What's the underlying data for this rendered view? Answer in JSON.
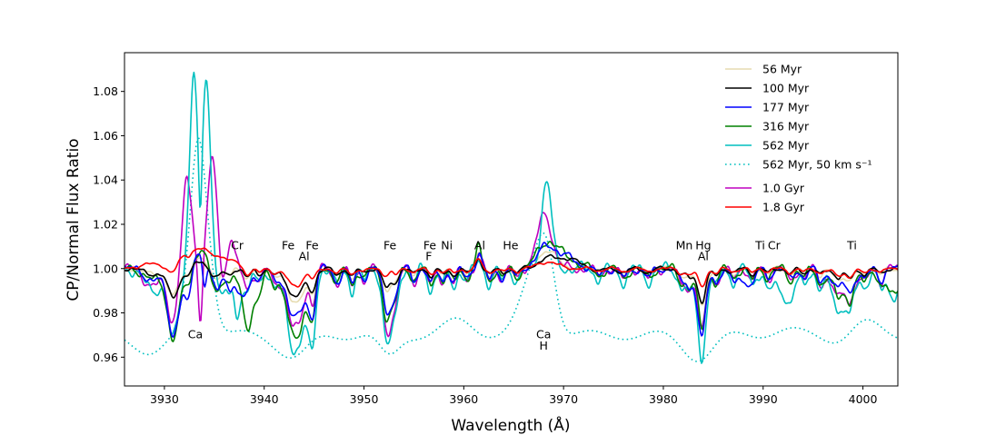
{
  "chart_data": {
    "type": "line",
    "xlabel": "Wavelength (Å)",
    "ylabel": "CP/Normal Flux Ratio",
    "xlim": [
      3926,
      4003.5
    ],
    "ylim": [
      0.947,
      1.0975
    ],
    "xticks": [
      3930,
      3940,
      3950,
      3960,
      3970,
      3980,
      3990,
      4000
    ],
    "yticks": [
      0.96,
      0.98,
      1.0,
      1.02,
      1.04,
      1.06,
      1.08
    ],
    "xtick_labels": [
      "3930",
      "3940",
      "3950",
      "3960",
      "3970",
      "3980",
      "3990",
      "4000"
    ],
    "ytick_labels": [
      "0.96",
      "0.98",
      "1.00",
      "1.02",
      "1.04",
      "1.06",
      "1.08"
    ],
    "legend_position": "top-right",
    "series": [
      {
        "name": "56 Myr",
        "color": "#e6dcb0",
        "dash": "solid",
        "amp": 0.55,
        "noise": 1,
        "features": [
          [
            3928.8,
            -0.0025,
            0.8
          ],
          [
            3931,
            -0.006,
            0.7
          ],
          [
            3933.6,
            0.004,
            0.6
          ],
          [
            3935.2,
            -0.004,
            0.5
          ],
          [
            3943,
            -0.009,
            1.0
          ],
          [
            3944.6,
            -0.005,
            0.4
          ],
          [
            3952.5,
            -0.006,
            0.5
          ],
          [
            3961.5,
            0.007,
            0.25
          ],
          [
            3968.4,
            0.008,
            1.0
          ],
          [
            3983.8,
            -0.01,
            0.5
          ],
          [
            3998,
            -0.003,
            1.2
          ]
        ]
      },
      {
        "name": "100 Myr",
        "color": "#000000",
        "dash": "solid",
        "amp": 0.5,
        "noise": 2,
        "features": [
          [
            3928.8,
            -0.0025,
            0.8
          ],
          [
            3931,
            -0.007,
            0.7
          ],
          [
            3933.6,
            0.003,
            0.6
          ],
          [
            3935.2,
            -0.004,
            0.5
          ],
          [
            3943,
            -0.007,
            1.0
          ],
          [
            3944.6,
            -0.004,
            0.4
          ],
          [
            3952.5,
            -0.005,
            0.5
          ],
          [
            3961.5,
            0.005,
            0.25
          ],
          [
            3968.4,
            0.004,
            1.0
          ],
          [
            3970.5,
            0.004,
            1.2
          ],
          [
            3983.8,
            -0.009,
            0.5
          ],
          [
            3998,
            -0.002,
            1.2
          ]
        ]
      },
      {
        "name": "177 Myr",
        "color": "#0000ff",
        "dash": "solid",
        "amp": 1.0,
        "noise": 3,
        "features": [
          [
            3928.8,
            -0.005,
            0.8
          ],
          [
            3931,
            -0.018,
            0.7
          ],
          [
            3932.3,
            -0.01,
            0.3
          ],
          [
            3933.6,
            0.008,
            0.6
          ],
          [
            3934,
            -0.012,
            0.2
          ],
          [
            3935.2,
            -0.01,
            0.5
          ],
          [
            3937.5,
            -0.012,
            0.5
          ],
          [
            3943,
            -0.012,
            1.0
          ],
          [
            3944.6,
            -0.01,
            0.4
          ],
          [
            3952.5,
            -0.012,
            0.5
          ],
          [
            3961.5,
            0.007,
            0.25
          ],
          [
            3968.4,
            0.01,
            1.0
          ],
          [
            3970.5,
            0.004,
            1.0
          ],
          [
            3983.8,
            -0.02,
            0.5
          ],
          [
            3988,
            -0.005,
            0.8
          ],
          [
            3998,
            -0.006,
            1.2
          ]
        ]
      },
      {
        "name": "316 Myr",
        "color": "#008000",
        "dash": "solid",
        "amp": 1.05,
        "noise": 4,
        "features": [
          [
            3928.8,
            -0.005,
            0.8
          ],
          [
            3931,
            -0.02,
            0.7
          ],
          [
            3933.6,
            0.008,
            0.6
          ],
          [
            3935.2,
            -0.01,
            0.5
          ],
          [
            3938.5,
            -0.018,
            0.8
          ],
          [
            3943,
            -0.02,
            1.0
          ],
          [
            3944.6,
            -0.01,
            0.4
          ],
          [
            3952.5,
            -0.015,
            0.5
          ],
          [
            3961.5,
            0.01,
            0.25
          ],
          [
            3968.4,
            0.012,
            1.0
          ],
          [
            3970.5,
            0.004,
            1.0
          ],
          [
            3983.8,
            -0.015,
            0.5
          ],
          [
            3998,
            -0.01,
            1.2
          ],
          [
            4003,
            -0.012,
            0.7
          ]
        ]
      },
      {
        "name": "562 Myr",
        "color": "#00bfbf",
        "dash": "solid",
        "amp": 1.4,
        "noise": 5,
        "features": [
          [
            3928.8,
            -0.01,
            0.8
          ],
          [
            3931,
            -0.015,
            0.7
          ],
          [
            3932.9,
            0.09,
            0.42
          ],
          [
            3934.2,
            0.085,
            0.42
          ],
          [
            3933.6,
            -0.03,
            0.15
          ],
          [
            3935.8,
            -0.012,
            0.4
          ],
          [
            3937.3,
            -0.022,
            0.3
          ],
          [
            3943,
            -0.022,
            1.0
          ],
          [
            3944.6,
            -0.02,
            0.4
          ],
          [
            3952.5,
            -0.025,
            0.5
          ],
          [
            3961.5,
            0.003,
            0.25
          ],
          [
            3968.3,
            0.04,
            0.5
          ],
          [
            3983.8,
            -0.025,
            0.5
          ],
          [
            3992,
            -0.01,
            1.2
          ],
          [
            3998,
            -0.015,
            1.2
          ],
          [
            4003,
            -0.012,
            0.7
          ]
        ]
      },
      {
        "name": "562 Myr, 50 km s⁻¹",
        "color": "#00bfbf",
        "dash": "dotted",
        "amp": 0.7,
        "noise": 6,
        "smooth": true,
        "base": -0.03,
        "features": [
          [
            3928.8,
            -0.008,
            1.5
          ],
          [
            3933.5,
            0.079,
            1.0
          ],
          [
            3933.3,
            0.012,
            0.5
          ],
          [
            3943,
            -0.01,
            1.5
          ],
          [
            3952.5,
            -0.01,
            1.0
          ],
          [
            3959.5,
            0.006,
            1.5
          ],
          [
            3967,
            0.025,
            1.3
          ],
          [
            3968.3,
            0.03,
            0.9
          ],
          [
            3983.5,
            -0.01,
            1.5
          ],
          [
            3992,
            0.002,
            1.5
          ],
          [
            3998,
            -0.003,
            1.5
          ],
          [
            4000,
            0.006,
            1.5
          ]
        ]
      },
      {
        "name": "1.0 Gyr",
        "color": "#bf00bf",
        "dash": "solid",
        "amp": 1.15,
        "noise": 7,
        "features": [
          [
            3928.8,
            -0.008,
            0.8
          ],
          [
            3931,
            -0.01,
            0.7
          ],
          [
            3932.3,
            0.045,
            0.5
          ],
          [
            3934.8,
            0.048,
            0.5
          ],
          [
            3933.6,
            -0.028,
            0.2
          ],
          [
            3936.6,
            0.02,
            0.35
          ],
          [
            3935.8,
            -0.01,
            0.3
          ],
          [
            3943,
            -0.015,
            1.0
          ],
          [
            3952.5,
            -0.02,
            0.5
          ],
          [
            3961.5,
            0.006,
            0.25
          ],
          [
            3968.1,
            0.024,
            0.75
          ],
          [
            3983.8,
            -0.015,
            0.5
          ],
          [
            3998,
            -0.01,
            1.2
          ]
        ]
      },
      {
        "name": "1.8 Gyr",
        "color": "#ff0000",
        "dash": "solid",
        "amp": 0.35,
        "noise": 8,
        "features": [
          [
            3928.5,
            0.002,
            1.0
          ],
          [
            3933.4,
            0.009,
            1.6
          ],
          [
            3936.5,
            0.004,
            0.8
          ],
          [
            3943,
            -0.004,
            1.0
          ],
          [
            3961.5,
            0.004,
            0.3
          ],
          [
            3968.4,
            0.003,
            1.0
          ],
          [
            3983.8,
            -0.004,
            0.5
          ],
          [
            3998,
            -0.002,
            1.2
          ]
        ]
      }
    ],
    "annotations": [
      {
        "text": "Ca",
        "x": 3933.1,
        "y": 0.9685
      },
      {
        "text": "Cr",
        "x": 3937.3,
        "y": 1.0088
      },
      {
        "text": "Fe",
        "x": 3942.4,
        "y": 1.0088
      },
      {
        "text": "Fe",
        "x": 3944.8,
        "y": 1.0088
      },
      {
        "text": "Al",
        "x": 3944.0,
        "y": 1.0038
      },
      {
        "text": "Fe",
        "x": 3952.6,
        "y": 1.0088
      },
      {
        "text": "Fe",
        "x": 3956.6,
        "y": 1.0088
      },
      {
        "text": "F",
        "x": 3956.5,
        "y": 1.0038
      },
      {
        "text": "Ni",
        "x": 3958.3,
        "y": 1.0088
      },
      {
        "text": "Al",
        "x": 3961.6,
        "y": 1.0088
      },
      {
        "text": "He",
        "x": 3964.7,
        "y": 1.0088
      },
      {
        "text": "Ca",
        "x": 3968.0,
        "y": 0.9685
      },
      {
        "text": "H",
        "x": 3968.0,
        "y": 0.9635
      },
      {
        "text": "Mn",
        "x": 3982.1,
        "y": 1.0088
      },
      {
        "text": "Hg",
        "x": 3984.0,
        "y": 1.0088
      },
      {
        "text": "Al",
        "x": 3984.0,
        "y": 1.0038
      },
      {
        "text": "Ti",
        "x": 3989.7,
        "y": 1.0088
      },
      {
        "text": "Cr",
        "x": 3991.1,
        "y": 1.0088
      },
      {
        "text": "Ti",
        "x": 3998.9,
        "y": 1.0088
      }
    ]
  }
}
